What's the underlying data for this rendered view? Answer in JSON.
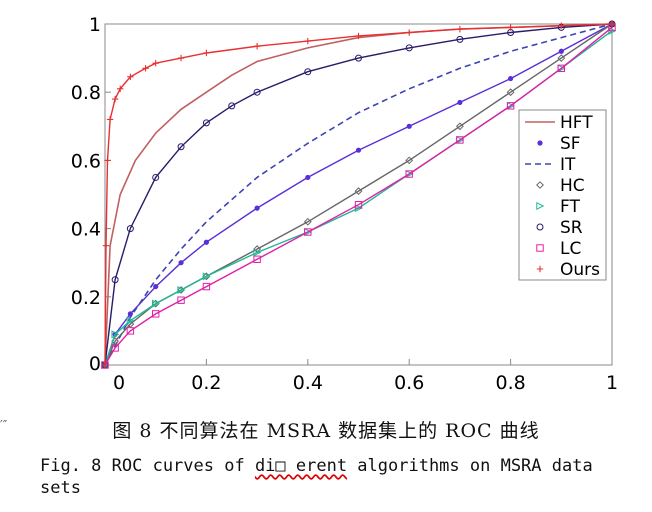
{
  "chart_data": {
    "type": "line",
    "xlim": [
      0,
      1
    ],
    "ylim": [
      0,
      1
    ],
    "x_ticks": [
      "0",
      "0.2",
      "0.4",
      "0.6",
      "0.8",
      "1"
    ],
    "y_ticks": [
      "0",
      "0.2",
      "0.4",
      "0.6",
      "0.8",
      "1"
    ],
    "grid": false,
    "legend_position": "right",
    "series": [
      {
        "name": "HFT",
        "color": "#c06060",
        "style": "solid",
        "marker": "none",
        "x": [
          0,
          0.01,
          0.03,
          0.06,
          0.1,
          0.15,
          0.2,
          0.25,
          0.3,
          0.4,
          0.5,
          0.6,
          0.7,
          0.8,
          0.9,
          1
        ],
        "y": [
          0,
          0.35,
          0.5,
          0.6,
          0.68,
          0.75,
          0.8,
          0.85,
          0.89,
          0.93,
          0.96,
          0.975,
          0.985,
          0.99,
          0.995,
          1
        ]
      },
      {
        "name": "SF",
        "color": "#5a2ed8",
        "style": "solid",
        "marker": "dot",
        "x": [
          0,
          0.02,
          0.05,
          0.1,
          0.15,
          0.2,
          0.3,
          0.4,
          0.5,
          0.6,
          0.7,
          0.8,
          0.9,
          1
        ],
        "y": [
          0,
          0.09,
          0.15,
          0.23,
          0.3,
          0.36,
          0.46,
          0.55,
          0.63,
          0.7,
          0.77,
          0.84,
          0.92,
          1
        ]
      },
      {
        "name": "IT",
        "color": "#3c44b4",
        "style": "dashed",
        "marker": "none",
        "x": [
          0,
          0.05,
          0.1,
          0.15,
          0.2,
          0.3,
          0.4,
          0.5,
          0.6,
          0.7,
          0.8,
          0.9,
          1
        ],
        "y": [
          0,
          0.14,
          0.25,
          0.34,
          0.42,
          0.55,
          0.65,
          0.74,
          0.81,
          0.87,
          0.92,
          0.96,
          1
        ]
      },
      {
        "name": "HC",
        "color": "#666666",
        "style": "solid",
        "marker": "diamond",
        "x": [
          0,
          0.02,
          0.05,
          0.1,
          0.15,
          0.2,
          0.3,
          0.4,
          0.5,
          0.6,
          0.7,
          0.8,
          0.9,
          1
        ],
        "y": [
          0,
          0.07,
          0.12,
          0.18,
          0.22,
          0.26,
          0.34,
          0.42,
          0.51,
          0.6,
          0.7,
          0.8,
          0.9,
          1
        ]
      },
      {
        "name": "FT",
        "color": "#20b894",
        "style": "solid",
        "marker": "triangle",
        "x": [
          0,
          0.02,
          0.05,
          0.1,
          0.15,
          0.2,
          0.3,
          0.4,
          0.5,
          0.6,
          0.7,
          0.8,
          0.9,
          1
        ],
        "y": [
          0,
          0.09,
          0.13,
          0.18,
          0.22,
          0.26,
          0.33,
          0.39,
          0.46,
          0.56,
          0.66,
          0.76,
          0.87,
          0.98
        ]
      },
      {
        "name": "SR",
        "color": "#2a1a6a",
        "style": "solid",
        "marker": "circle",
        "x": [
          0,
          0.02,
          0.05,
          0.1,
          0.15,
          0.2,
          0.25,
          0.3,
          0.4,
          0.5,
          0.6,
          0.7,
          0.8,
          0.9,
          1
        ],
        "y": [
          0,
          0.25,
          0.4,
          0.55,
          0.64,
          0.71,
          0.76,
          0.8,
          0.86,
          0.9,
          0.93,
          0.955,
          0.975,
          0.99,
          1
        ]
      },
      {
        "name": "LC",
        "color": "#e020a8",
        "style": "solid",
        "marker": "square",
        "x": [
          0,
          0.02,
          0.05,
          0.1,
          0.15,
          0.2,
          0.3,
          0.4,
          0.5,
          0.6,
          0.7,
          0.8,
          0.9,
          1
        ],
        "y": [
          0,
          0.05,
          0.1,
          0.15,
          0.19,
          0.23,
          0.31,
          0.39,
          0.47,
          0.56,
          0.66,
          0.76,
          0.87,
          0.99
        ]
      },
      {
        "name": "Ours",
        "color": "#e83030",
        "style": "solid",
        "marker": "plus",
        "x": [
          0,
          0.002,
          0.005,
          0.01,
          0.02,
          0.03,
          0.05,
          0.08,
          0.1,
          0.15,
          0.2,
          0.3,
          0.4,
          0.5,
          0.6,
          0.7,
          0.8,
          0.9,
          1
        ],
        "y": [
          0,
          0.35,
          0.6,
          0.72,
          0.78,
          0.81,
          0.845,
          0.87,
          0.885,
          0.9,
          0.915,
          0.935,
          0.95,
          0.965,
          0.975,
          0.985,
          0.99,
          0.995,
          1
        ]
      }
    ]
  },
  "caption": {
    "chinese": "图 8 不同算法在 MSRA 数据集上的 ROC 曲线",
    "english_before": "Fig. 8 ROC curves of ",
    "english_glitch": "di□ erent",
    "english_after": " algorithms on MSRA data sets",
    "margin_mark": "′″"
  }
}
